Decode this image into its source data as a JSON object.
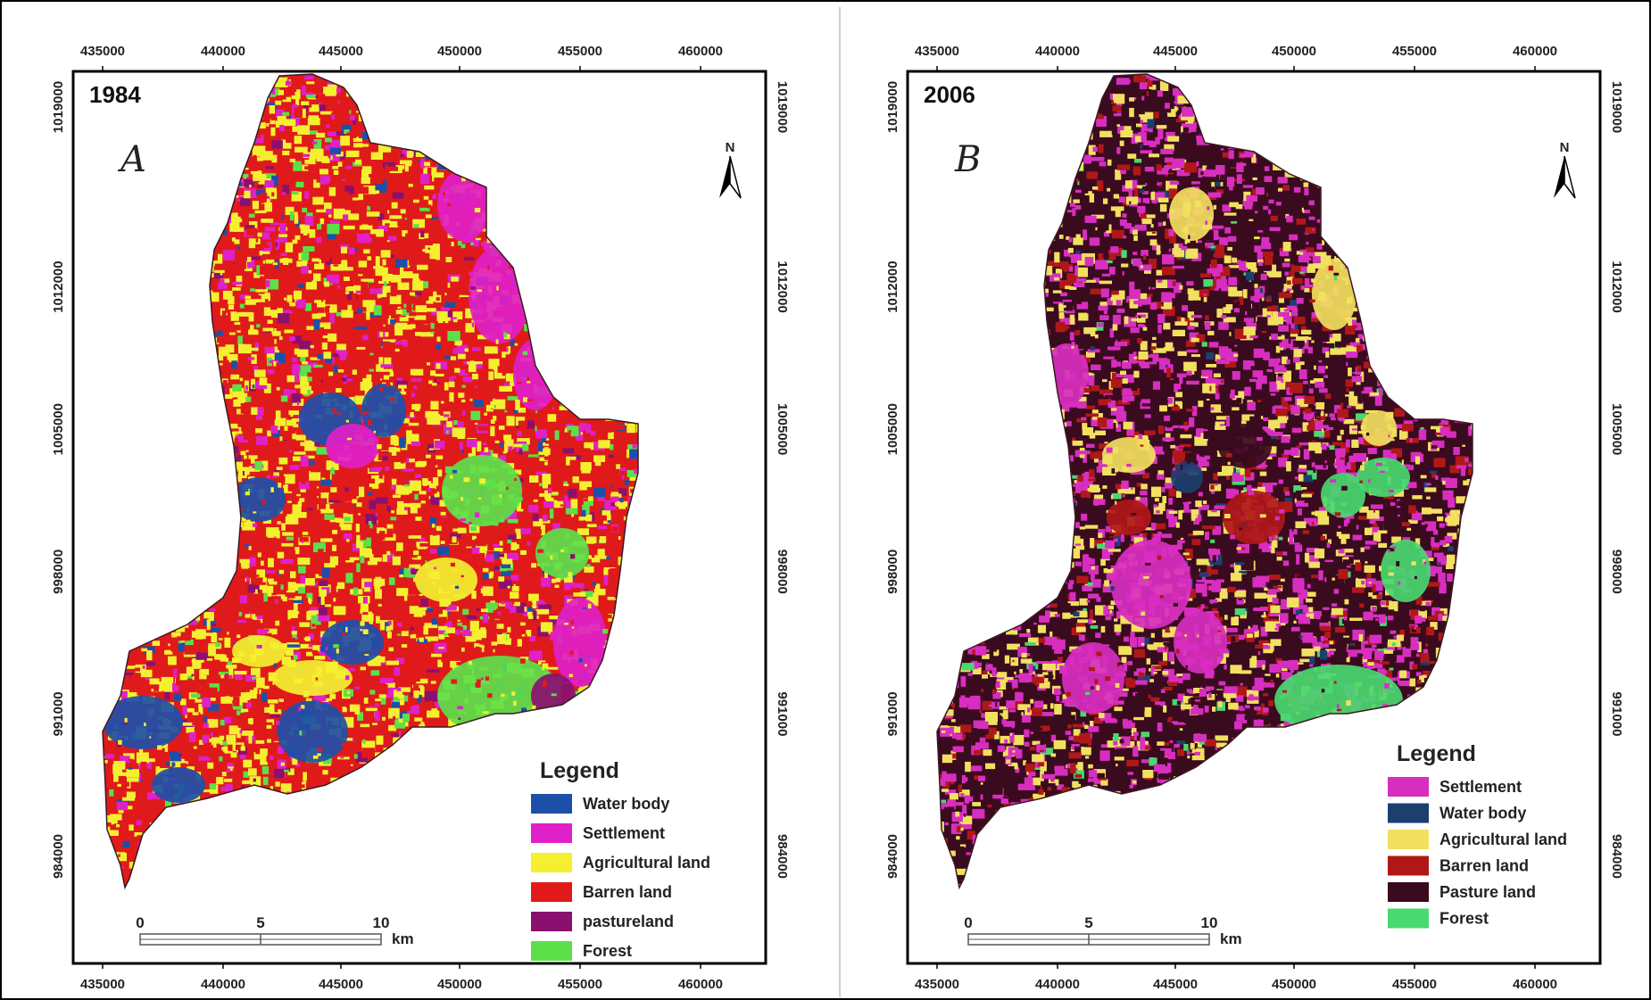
{
  "maps": [
    {
      "year": "1984",
      "panel_letter": "A",
      "x_ticks": [
        "435000",
        "440000",
        "445000",
        "450000",
        "455000",
        "460000"
      ],
      "y_ticks": [
        "1019000",
        "1012000",
        "1005000",
        "998000",
        "991000",
        "984000"
      ],
      "north_label": "N",
      "legend_title": "Legend",
      "legend": [
        {
          "label": "Water body",
          "color": "#1e4fa8"
        },
        {
          "label": "Settlement",
          "color": "#e020c8"
        },
        {
          "label": "Agricultural land",
          "color": "#f4f030"
        },
        {
          "label": "Barren land",
          "color": "#e01a1a"
        },
        {
          "label": "pastureland",
          "color": "#8a1070"
        },
        {
          "label": "Forest",
          "color": "#5ce04a"
        }
      ],
      "scale_labels": [
        "0",
        "5",
        "10"
      ],
      "scale_unit": "km"
    },
    {
      "year": "2006",
      "panel_letter": "B",
      "x_ticks": [
        "435000",
        "440000",
        "445000",
        "450000",
        "455000",
        "460000"
      ],
      "y_ticks": [
        "1019000",
        "1012000",
        "1005000",
        "998000",
        "991000",
        "984000"
      ],
      "north_label": "N",
      "legend_title": "Legend",
      "legend": [
        {
          "label": "Settlement",
          "color": "#d82ec0"
        },
        {
          "label": "Water body",
          "color": "#1c3f70"
        },
        {
          "label": "Agricultural land",
          "color": "#f2e060"
        },
        {
          "label": "Barren land",
          "color": "#b01818"
        },
        {
          "label": "Pasture land",
          "color": "#3a0a1e"
        },
        {
          "label": "Forest",
          "color": "#4ad870"
        }
      ],
      "scale_labels": [
        "0",
        "5",
        "10"
      ],
      "scale_unit": "km"
    }
  ]
}
